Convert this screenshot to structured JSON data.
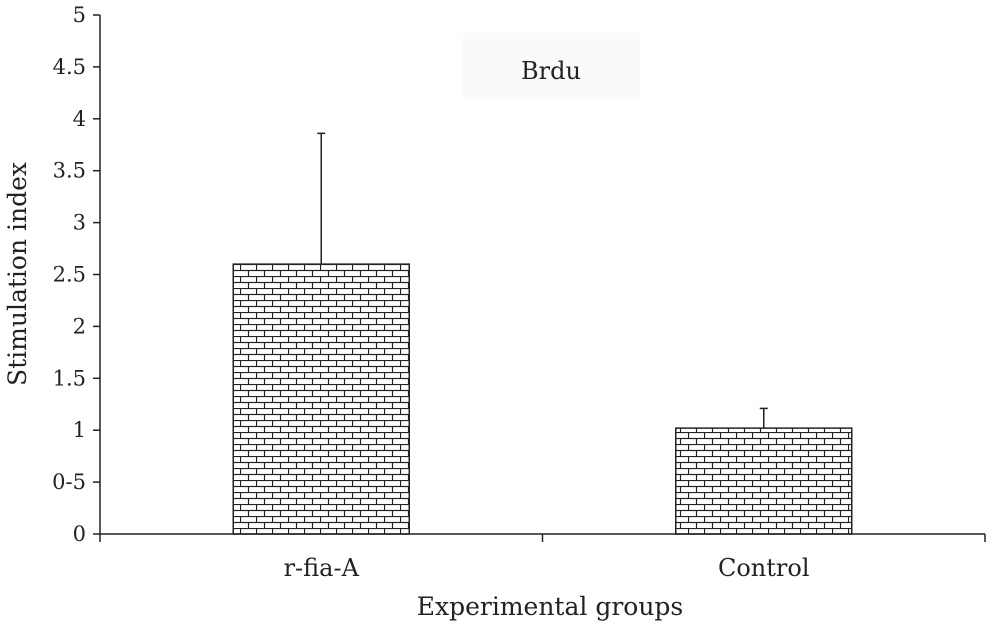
{
  "chart_data": {
    "type": "bar",
    "title": "Brdu",
    "xlabel": "Experimental groups",
    "ylabel": "Stimulation index",
    "categories": [
      "r-fia-A",
      "Control"
    ],
    "values": [
      2.6,
      1.02
    ],
    "error_upper": [
      3.86,
      1.21
    ],
    "ylim": [
      0,
      5
    ],
    "yticks": [
      {
        "value": 0,
        "label": "0"
      },
      {
        "value": 0.5,
        "label": "0-5"
      },
      {
        "value": 1,
        "label": "1"
      },
      {
        "value": 1.5,
        "label": "1.5"
      },
      {
        "value": 2,
        "label": "2"
      },
      {
        "value": 2.5,
        "label": "2.5"
      },
      {
        "value": 3,
        "label": "3"
      },
      {
        "value": 3.5,
        "label": "3.5"
      },
      {
        "value": 4,
        "label": "4"
      },
      {
        "value": 4.5,
        "label": "4.5"
      },
      {
        "value": 5,
        "label": "5"
      }
    ],
    "grid": false,
    "legend": "none",
    "bar_fill": "brick-pattern"
  }
}
